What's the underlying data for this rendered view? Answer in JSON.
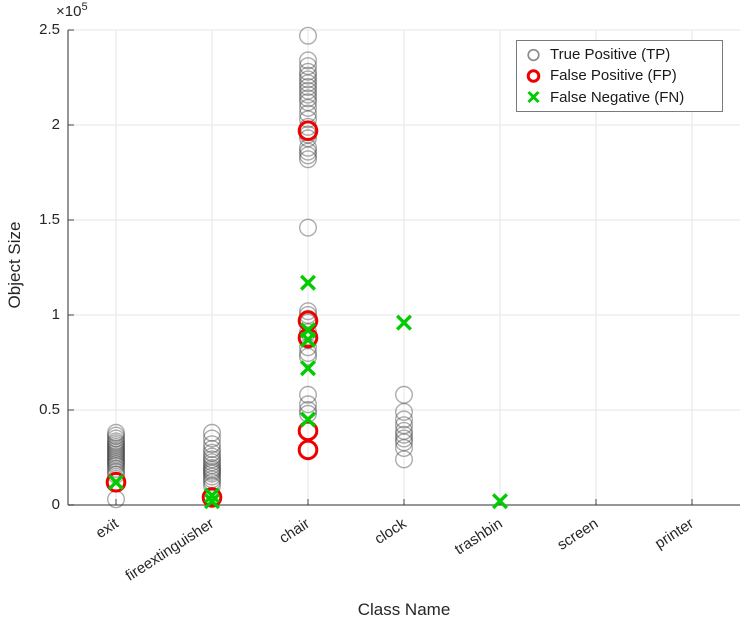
{
  "axes": {
    "xlabel": "Class Name",
    "ylabel": "Object Size",
    "exponent": {
      "base": "×10",
      "exp": "5"
    },
    "y_ticks": [
      0,
      0.5,
      1,
      1.5,
      2,
      2.5
    ],
    "y_tick_labels": [
      "0",
      "0.5",
      "1",
      "1.5",
      "2",
      "2.5"
    ],
    "categories": [
      "exit",
      "fireextinguisher",
      "chair",
      "clock",
      "trashbin",
      "screen",
      "printer"
    ]
  },
  "legend": {
    "items": [
      {
        "label": "True Positive (TP)",
        "marker": "circle",
        "color": "#8C8C8C"
      },
      {
        "label": "False Positive (FP)",
        "marker": "circle-bold",
        "color": "#EE0000"
      },
      {
        "label": "False Negative (FN)",
        "marker": "x",
        "color": "#00CC00"
      }
    ]
  },
  "colors": {
    "grid": "#E6E6E6",
    "axis": "#737373",
    "tick": "#404040",
    "tp": "#3A3A3A",
    "fp": "#EE0000",
    "fn": "#00CC00",
    "text": "#262626"
  },
  "chart_data": {
    "type": "scatter",
    "title": "",
    "xlabel": "Class Name",
    "ylabel": "Object Size",
    "y_unit": "1e5",
    "ylim": [
      0,
      2.5
    ],
    "grid": true,
    "legend_position": "northeast",
    "categories": [
      "exit",
      "fireextinguisher",
      "chair",
      "clock",
      "trashbin",
      "screen",
      "printer"
    ],
    "series": [
      {
        "name": "True Positive (TP)",
        "marker": "o",
        "color": "#3A3A3A",
        "opacity": 0.42,
        "stroke_width": 1.4,
        "radius": 8.3,
        "points": {
          "exit": [
            0.38,
            0.365,
            0.35,
            0.335,
            0.325,
            0.315,
            0.305,
            0.295,
            0.285,
            0.275,
            0.265,
            0.255,
            0.245,
            0.235,
            0.225,
            0.215,
            0.205,
            0.19,
            0.175,
            0.16,
            0.03
          ],
          "fireextinguisher": [
            0.38,
            0.35,
            0.32,
            0.295,
            0.275,
            0.255,
            0.24,
            0.225,
            0.21,
            0.195,
            0.185,
            0.175,
            0.165,
            0.15,
            0.135,
            0.12,
            0.1
          ],
          "chair": [
            2.47,
            2.34,
            2.31,
            2.28,
            2.26,
            2.24,
            2.22,
            2.2,
            2.18,
            2.16,
            2.14,
            2.12,
            2.09,
            2.06,
            2.03,
            1.99,
            1.97,
            1.95,
            1.93,
            1.88,
            1.86,
            1.84,
            1.82,
            1.46,
            1.02,
            1.0,
            0.98,
            0.96,
            0.91,
            0.87,
            0.83,
            0.8,
            0.78,
            0.58,
            0.53,
            0.5,
            0.48
          ],
          "clock": [
            0.58,
            0.49,
            0.45,
            0.42,
            0.39,
            0.37,
            0.35,
            0.33,
            0.3,
            0.24
          ],
          "trashbin": [],
          "screen": [],
          "printer": []
        }
      },
      {
        "name": "False Positive (FP)",
        "marker": "o-bold",
        "color": "#EE0000",
        "opacity": 1,
        "stroke_width": 3,
        "radius": 8.8,
        "points": {
          "exit": [
            0.12
          ],
          "fireextinguisher": [
            0.04
          ],
          "chair": [
            1.97,
            0.97,
            0.88,
            0.39,
            0.29
          ],
          "clock": [],
          "trashbin": [],
          "screen": [],
          "printer": []
        }
      },
      {
        "name": "False Negative (FN)",
        "marker": "x",
        "color": "#00CC00",
        "opacity": 1,
        "stroke_width": 3.4,
        "radius": 6.8,
        "points": {
          "exit": [
            0.12
          ],
          "fireextinguisher": [
            0.05,
            0.02
          ],
          "chair": [
            1.17,
            0.92,
            0.87,
            0.72,
            0.45
          ],
          "clock": [
            0.96
          ],
          "trashbin": [
            0.02
          ],
          "screen": [],
          "printer": []
        }
      }
    ]
  }
}
